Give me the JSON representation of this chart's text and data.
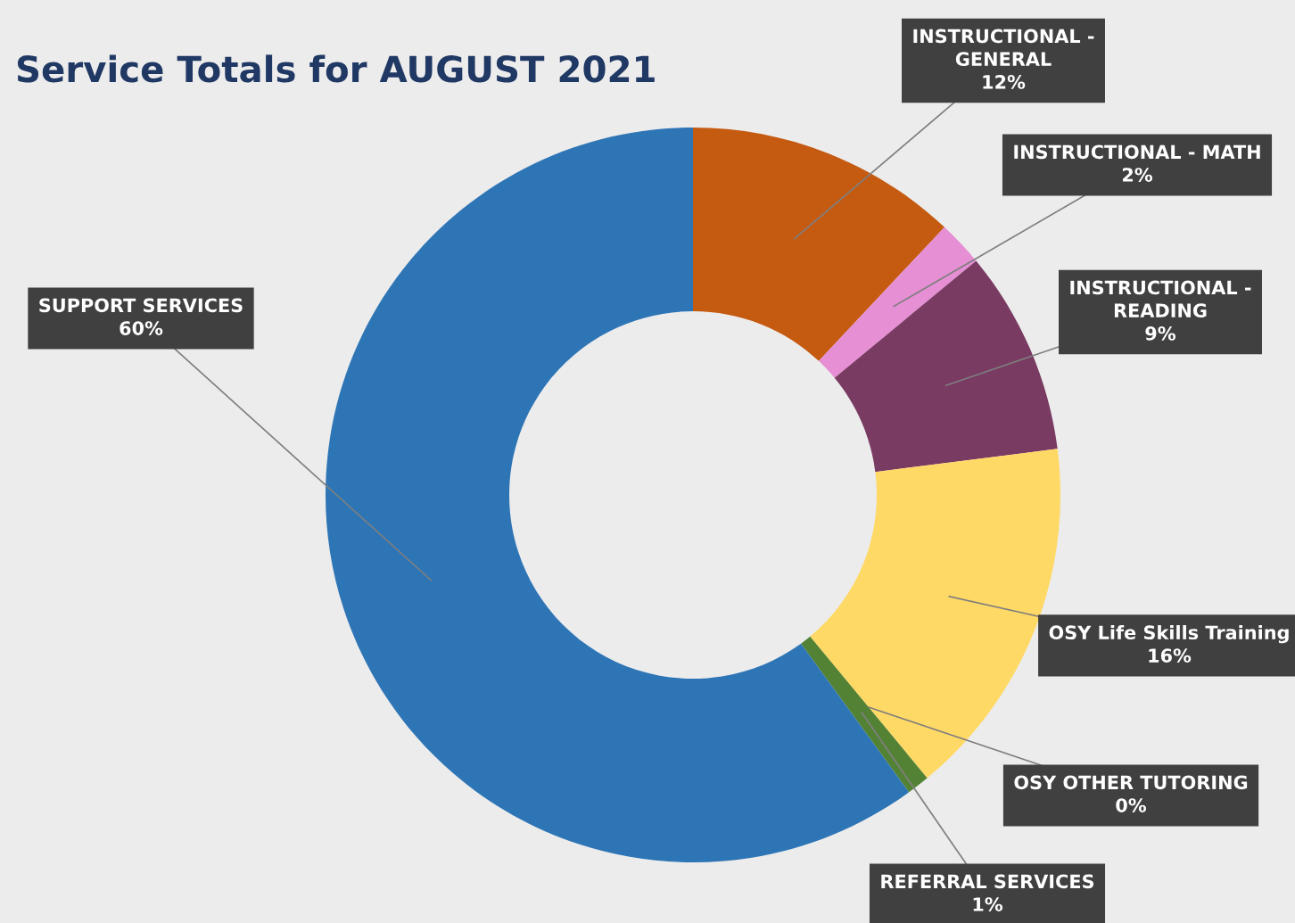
{
  "chart_data": {
    "type": "donut",
    "title": "Service Totals for AUGUST 2021",
    "categories": [
      "INSTRUCTIONAL -\nGENERAL",
      "INSTRUCTIONAL - MATH",
      "INSTRUCTIONAL -\nREADING",
      "OSY Life Skills Training",
      "OSY OTHER TUTORING",
      "REFERRAL SERVICES",
      "SUPPORT SERVICES"
    ],
    "values": [
      12,
      2,
      9,
      16,
      0,
      1,
      60
    ],
    "value_labels": [
      "12%",
      "2%",
      "9%",
      "16%",
      "0%",
      "1%",
      "60%"
    ],
    "colors": [
      "#c55a11",
      "#e68fd5",
      "#7a3b63",
      "#ffd966",
      "#92d050",
      "#548235",
      "#2e75b6"
    ],
    "legend": false
  }
}
